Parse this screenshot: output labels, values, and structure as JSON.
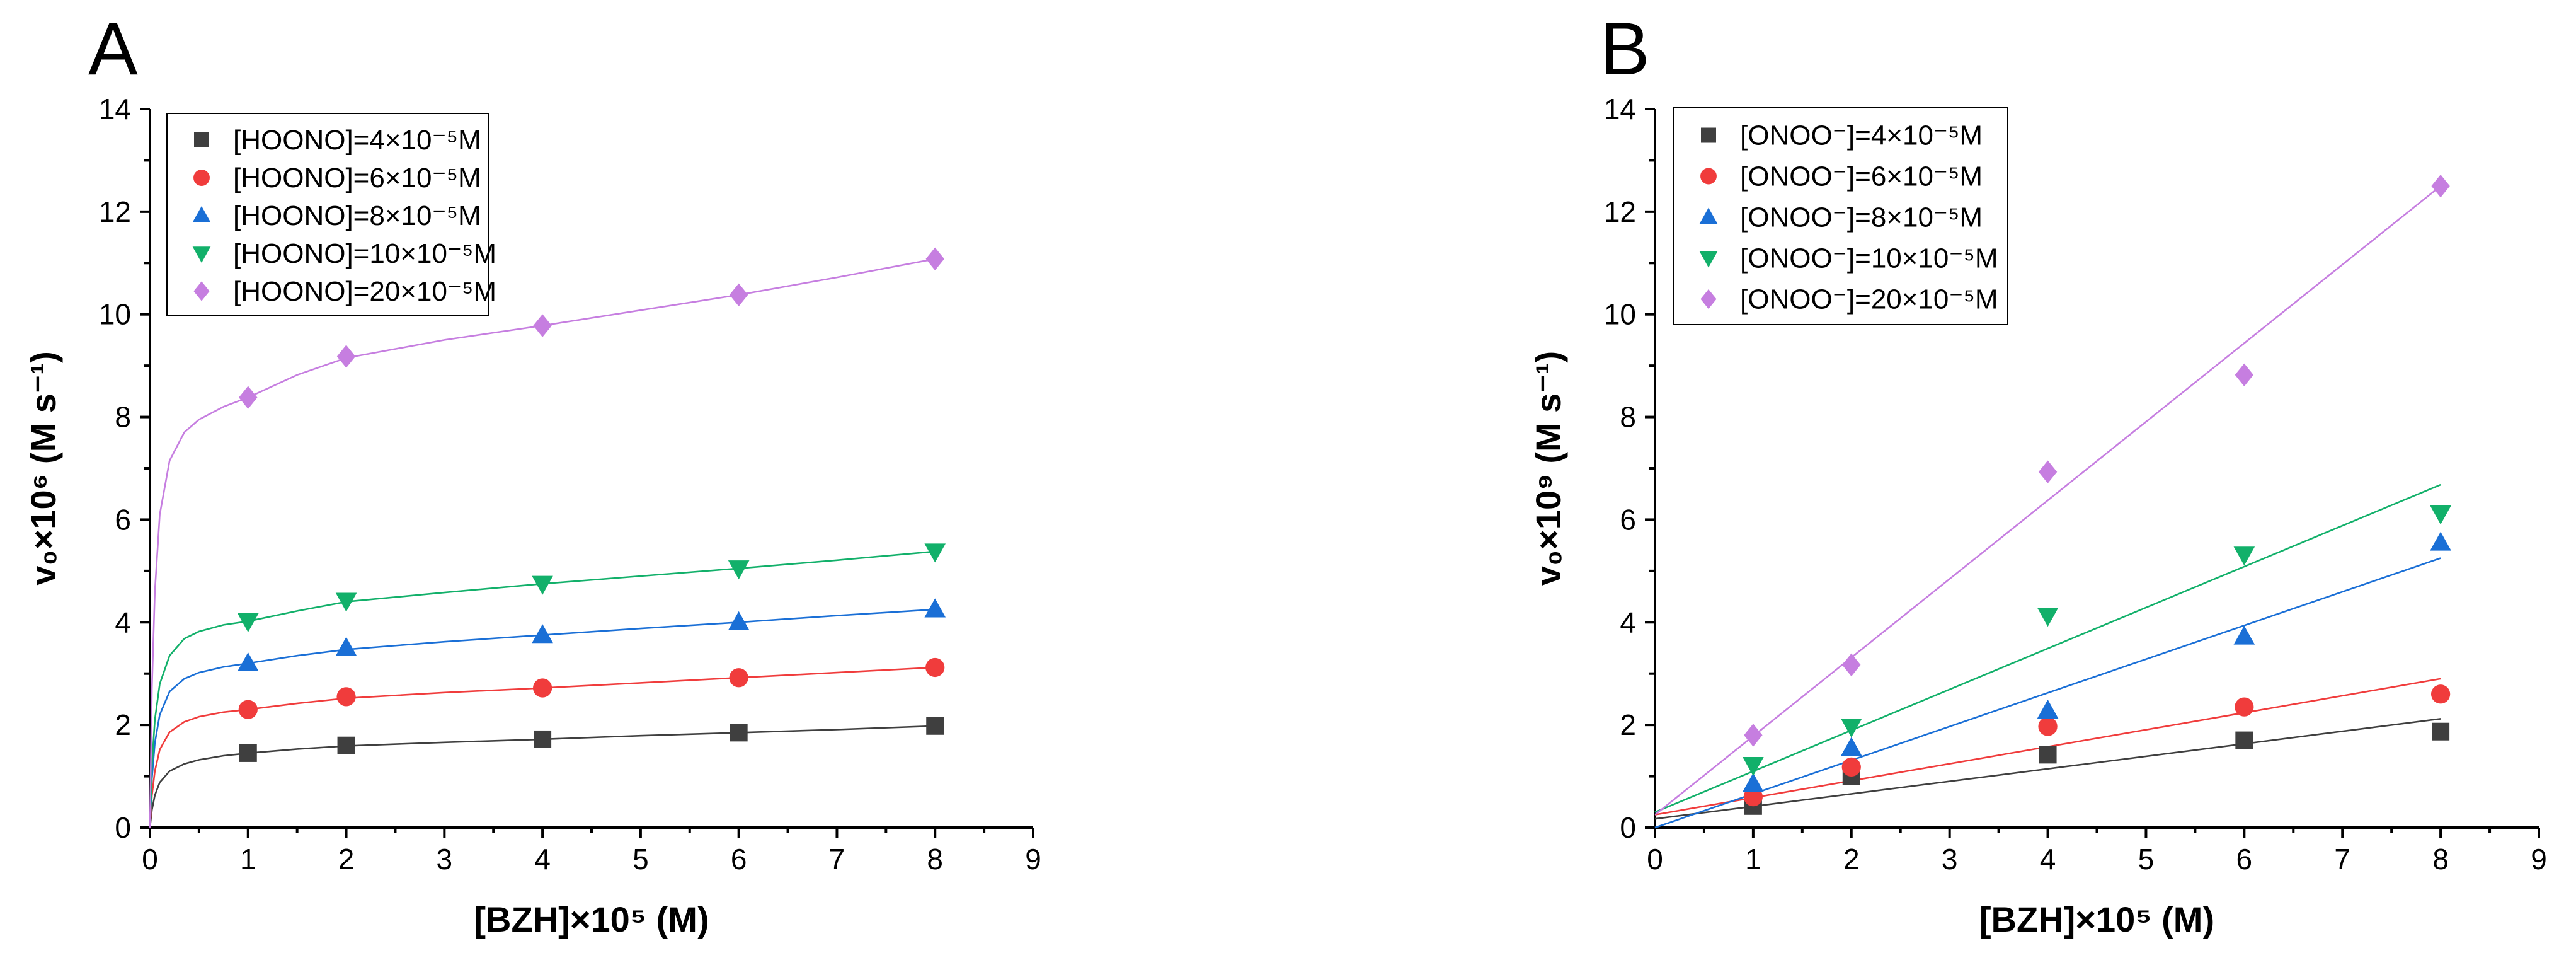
{
  "chart_data": [
    {
      "type": "scatter",
      "panel_label": "A",
      "xlabel": "[BZH]×10⁵ (M)",
      "ylabel": "v₀×10⁶ (M s⁻¹)",
      "xlim": [
        0,
        9
      ],
      "ylim": [
        0,
        14
      ],
      "xticks": [
        0,
        1,
        2,
        3,
        4,
        5,
        6,
        7,
        8,
        9
      ],
      "yticks": [
        0,
        2,
        4,
        6,
        8,
        10,
        12,
        14
      ],
      "grid": false,
      "legend_position": "top-left",
      "fit_lines": true,
      "series": [
        {
          "name": "[HOONO]=4×10⁻⁵M",
          "marker": "square",
          "color": "#3f3f3f",
          "x": [
            1,
            2,
            4,
            6,
            8
          ],
          "y": [
            1.45,
            1.6,
            1.72,
            1.85,
            1.98
          ],
          "fit": {
            "x": [
              0,
              0.02,
              0.05,
              0.1,
              0.2,
              0.35,
              0.5,
              0.75,
              1,
              1.5,
              2,
              3,
              4,
              5,
              6,
              7,
              8
            ],
            "y": [
              0,
              0.34,
              0.63,
              0.88,
              1.1,
              1.24,
              1.32,
              1.4,
              1.45,
              1.53,
              1.59,
              1.66,
              1.72,
              1.79,
              1.85,
              1.91,
              1.98
            ]
          }
        },
        {
          "name": "[HOONO]=6×10⁻⁵M",
          "marker": "circle",
          "color": "#f03c3c",
          "x": [
            1,
            2,
            4,
            6,
            8
          ],
          "y": [
            2.3,
            2.55,
            2.72,
            2.92,
            3.12
          ],
          "fit": {
            "x": [
              0,
              0.02,
              0.05,
              0.1,
              0.2,
              0.35,
              0.5,
              0.75,
              1,
              1.5,
              2,
              3,
              4,
              5,
              6,
              7,
              8
            ],
            "y": [
              0,
              0.62,
              1.1,
              1.52,
              1.86,
              2.06,
              2.16,
              2.25,
              2.3,
              2.42,
              2.52,
              2.63,
              2.72,
              2.82,
              2.92,
              3.02,
              3.12
            ]
          }
        },
        {
          "name": "[HOONO]=8×10⁻⁵M",
          "marker": "triangle-up",
          "color": "#1a6fd6",
          "x": [
            1,
            2,
            4,
            6,
            8
          ],
          "y": [
            3.2,
            3.5,
            3.75,
            4.0,
            4.25
          ],
          "fit": {
            "x": [
              0,
              0.02,
              0.05,
              0.1,
              0.2,
              0.35,
              0.5,
              0.75,
              1,
              1.5,
              2,
              3,
              4,
              5,
              6,
              7,
              8
            ],
            "y": [
              0,
              0.95,
              1.65,
              2.2,
              2.65,
              2.9,
              3.02,
              3.13,
              3.2,
              3.35,
              3.47,
              3.62,
              3.75,
              3.88,
              4.0,
              4.13,
              4.25
            ]
          }
        },
        {
          "name": "[HOONO]=10×10⁻⁵M",
          "marker": "triangle-down",
          "color": "#12b06a",
          "x": [
            1,
            2,
            4,
            6,
            8
          ],
          "y": [
            4.02,
            4.42,
            4.75,
            5.05,
            5.38
          ],
          "fit": {
            "x": [
              0,
              0.02,
              0.05,
              0.1,
              0.2,
              0.35,
              0.5,
              0.75,
              1,
              1.5,
              2,
              3,
              4,
              5,
              6,
              7,
              8
            ],
            "y": [
              0,
              1.2,
              2.1,
              2.8,
              3.35,
              3.68,
              3.82,
              3.95,
              4.02,
              4.22,
              4.4,
              4.58,
              4.75,
              4.9,
              5.05,
              5.21,
              5.38
            ]
          }
        },
        {
          "name": "[HOONO]=20×10⁻⁵M",
          "marker": "diamond",
          "color": "#c67ee0",
          "x": [
            1,
            2,
            4,
            6,
            8
          ],
          "y": [
            8.38,
            9.18,
            9.78,
            10.38,
            11.08
          ],
          "fit": {
            "x": [
              0,
              0.02,
              0.05,
              0.1,
              0.2,
              0.35,
              0.5,
              0.75,
              1,
              1.5,
              2,
              3,
              4,
              5,
              6,
              7,
              8
            ],
            "y": [
              0,
              2.7,
              4.6,
              6.1,
              7.15,
              7.7,
              7.95,
              8.2,
              8.38,
              8.82,
              9.15,
              9.5,
              9.78,
              10.08,
              10.38,
              10.72,
              11.08
            ]
          }
        }
      ]
    },
    {
      "type": "scatter",
      "panel_label": "B",
      "xlabel": "[BZH]×10⁵ (M)",
      "ylabel": "v₀×10⁹ (M s⁻¹)",
      "xlim": [
        0,
        9
      ],
      "ylim": [
        0,
        14
      ],
      "xticks": [
        0,
        1,
        2,
        3,
        4,
        5,
        6,
        7,
        8,
        9
      ],
      "yticks": [
        0,
        2,
        4,
        6,
        8,
        10,
        12,
        14
      ],
      "grid": false,
      "legend_position": "top-left",
      "fit_lines": true,
      "series": [
        {
          "name": "[ONOO⁻]=4×10⁻⁵M",
          "marker": "square",
          "color": "#3f3f3f",
          "x": [
            1,
            2,
            4,
            6,
            8
          ],
          "y": [
            0.42,
            1.0,
            1.42,
            1.7,
            1.87
          ],
          "fit": {
            "x": [
              0,
              8
            ],
            "y": [
              0.17,
              2.12
            ]
          }
        },
        {
          "name": "[ONOO⁻]=6×10⁻⁵M",
          "marker": "circle",
          "color": "#f03c3c",
          "x": [
            1,
            2,
            4,
            6,
            8
          ],
          "y": [
            0.6,
            1.18,
            1.97,
            2.35,
            2.6
          ],
          "fit": {
            "x": [
              0,
              8
            ],
            "y": [
              0.25,
              2.9
            ]
          }
        },
        {
          "name": "[ONOO⁻]=8×10⁻⁵M",
          "marker": "triangle-up",
          "color": "#1a6fd6",
          "x": [
            1,
            2,
            4,
            6,
            8
          ],
          "y": [
            0.85,
            1.55,
            2.28,
            3.72,
            5.55
          ],
          "fit": {
            "x": [
              0,
              8
            ],
            "y": [
              0.0,
              5.25
            ]
          }
        },
        {
          "name": "[ONOO⁻]=10×10⁻⁵M",
          "marker": "triangle-down",
          "color": "#12b06a",
          "x": [
            1,
            2,
            4,
            6,
            8
          ],
          "y": [
            1.22,
            1.97,
            4.13,
            5.32,
            6.12
          ],
          "fit": {
            "x": [
              0,
              8
            ],
            "y": [
              0.3,
              6.68
            ]
          }
        },
        {
          "name": "[ONOO⁻]=20×10⁻⁵M",
          "marker": "diamond",
          "color": "#c67ee0",
          "x": [
            1,
            2,
            4,
            6,
            8
          ],
          "y": [
            1.8,
            3.17,
            6.93,
            8.82,
            12.5
          ],
          "fit": {
            "x": [
              0,
              8
            ],
            "y": [
              0.25,
              12.5
            ]
          }
        }
      ]
    }
  ]
}
